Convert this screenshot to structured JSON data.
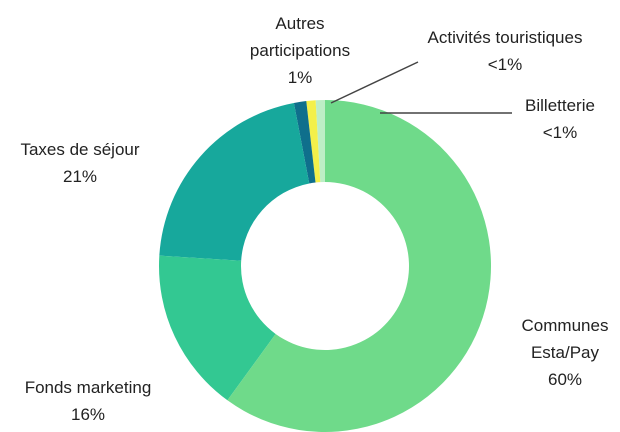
{
  "chart_data": {
    "type": "donut",
    "categories": [
      "Communes Esta/Pay",
      "Fonds marketing",
      "Taxes de séjour",
      "Autres participations",
      "Activités touristiques",
      "Billetterie"
    ],
    "values": [
      60,
      16,
      21,
      1.2,
      0.9,
      0.9
    ],
    "value_labels": [
      "60%",
      "16%",
      "21%",
      "1%",
      "<1%",
      "<1%"
    ],
    "colors": [
      "#6fda8a",
      "#33c892",
      "#17a89c",
      "#0f6f8c",
      "#f3f04a",
      "#bdeec6"
    ]
  }
}
